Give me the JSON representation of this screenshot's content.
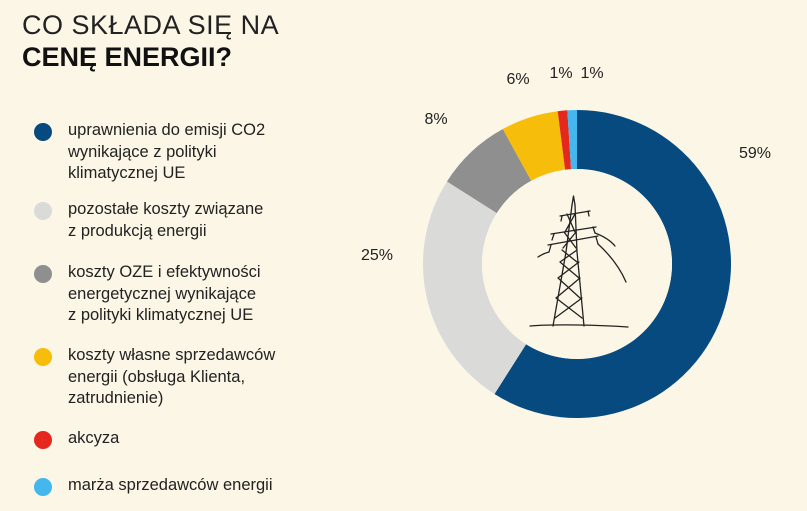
{
  "title": {
    "line1": "CO SKŁADA SIĘ NA",
    "line2": "CENĘ ENERGII?"
  },
  "colors": {
    "background": "#fbf6e6",
    "dark_blue": "#064a80",
    "light_gray": "#dadad8",
    "gray": "#8f8f8f",
    "yellow": "#f6bd0b",
    "red": "#e5281e",
    "light_blue": "#44b7ee"
  },
  "chart_data": {
    "type": "pie",
    "variant": "donut",
    "center_icon": "power-pylon-icon",
    "series": [
      {
        "name": "uprawnienia do emisji CO2\nwynikające z polityki\nklimatycznej UE",
        "value": 59,
        "label": "59%",
        "color": "#064a80"
      },
      {
        "name": "pozostałe koszty związane\nz produkcją energii",
        "value": 25,
        "label": "25%",
        "color": "#dadad8"
      },
      {
        "name": "koszty OZE i efektywności\nenergetycznej wynikające\nz polityki klimatycznej UE",
        "value": 8,
        "label": "8%",
        "color": "#8f8f8f"
      },
      {
        "name": "koszty własne sprzedawców\nenergii (obsługa Klienta,\nzatrudnienie)",
        "value": 6,
        "label": "6%",
        "color": "#f6bd0b"
      },
      {
        "name": "akcyza",
        "value": 1,
        "label": "1%",
        "color": "#e5281e"
      },
      {
        "name": "marża sprzedawców energii",
        "value": 1,
        "label": "1%",
        "color": "#44b7ee"
      }
    ]
  }
}
